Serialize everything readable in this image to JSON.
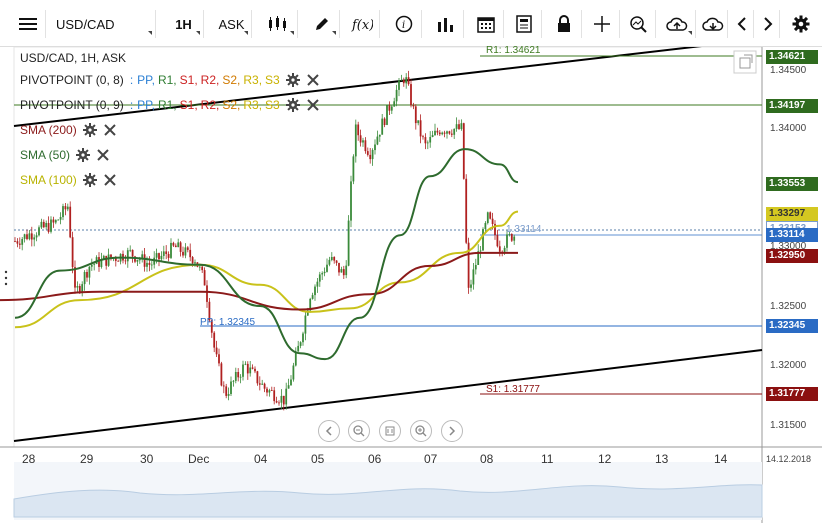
{
  "toolbar": {
    "symbol": "USD/CAD",
    "interval": "1H",
    "price_type": "ASK"
  },
  "chart": {
    "title": "USD/CAD, 1H, ASK",
    "indicators": [
      {
        "label": "PIVOTPOINT (0, 8)",
        "levels": [
          "PP,",
          "R1,",
          "S1,",
          "R2,",
          "S2,",
          "R3,",
          "S3"
        ]
      },
      {
        "label": "PIVOTPOINT (0, 9)",
        "levels": [
          "PP,",
          "R1,",
          "S1,",
          "R2,",
          "S2,",
          "R3,",
          "S3"
        ]
      },
      {
        "label": "SMA (200)"
      },
      {
        "label": "SMA (50)"
      },
      {
        "label": "SMA (100)"
      }
    ],
    "pivot_separator": ":",
    "level_colors": [
      "#2a7fd4",
      "#2f7d32",
      "#cc2222",
      "#cc2222",
      "#d07a00",
      "#c9b200",
      "#c9b200"
    ],
    "sma_colors": {
      "sma200": "#8b1a1a",
      "sma50": "#2e6b2e",
      "sma100": "#b8b300"
    },
    "line_labels": {
      "r1": "R1: 1.34621",
      "pp": "PP: 1.32345",
      "s1": "S1: 1.31777",
      "last": "1.33114"
    },
    "price_axis": [
      "1.34500",
      "1.34000",
      "1.33000",
      "1.32500",
      "1.32000",
      "1.31500"
    ],
    "price_tags": [
      {
        "value": "1.34621",
        "color": "#2f6b1f"
      },
      {
        "value": "1.34197",
        "color": "#2f6b1f"
      },
      {
        "value": "1.33553",
        "color": "#2f6b1f"
      },
      {
        "value": "1.33297",
        "color": "#d4c821",
        "text_color": "#333"
      },
      {
        "value": "1.33153",
        "color": "#ffffff",
        "text_color": "#7a9ccc"
      },
      {
        "value": "1.33114",
        "color": "#2a6bc4"
      },
      {
        "value": "1.32950",
        "color": "#8b1010"
      },
      {
        "value": "1.32345",
        "color": "#2a6bc4"
      },
      {
        "value": "1.31777",
        "color": "#8b1010"
      }
    ],
    "date_axis": [
      "28",
      "29",
      "30",
      "Dec",
      "04",
      "05",
      "06",
      "07",
      "08",
      "11",
      "12",
      "13",
      "14"
    ],
    "date_corner": "14.12.2018"
  },
  "chart_data": {
    "type": "line",
    "series": [
      {
        "name": "SMA (200)",
        "values": [
          [
            0,
            1.3255
          ],
          [
            100,
            1.3262
          ],
          [
            200,
            1.3262
          ],
          [
            300,
            1.3247
          ],
          [
            370,
            1.326
          ],
          [
            430,
            1.3284
          ],
          [
            480,
            1.3295
          ],
          [
            518,
            1.3295
          ]
        ]
      },
      {
        "name": "SMA (50)",
        "values": [
          [
            15,
            1.324
          ],
          [
            60,
            1.328
          ],
          [
            120,
            1.3291
          ],
          [
            200,
            1.3285
          ],
          [
            260,
            1.325
          ],
          [
            300,
            1.321
          ],
          [
            325,
            1.3205
          ],
          [
            360,
            1.324
          ],
          [
            400,
            1.331
          ],
          [
            430,
            1.336
          ],
          [
            465,
            1.3383
          ],
          [
            500,
            1.337
          ],
          [
            518,
            1.3355
          ]
        ]
      },
      {
        "name": "SMA (100)",
        "values": [
          [
            15,
            1.3232
          ],
          [
            80,
            1.3255
          ],
          [
            200,
            1.3285
          ],
          [
            260,
            1.3268
          ],
          [
            310,
            1.3245
          ],
          [
            350,
            1.3248
          ],
          [
            400,
            1.327
          ],
          [
            460,
            1.3295
          ],
          [
            500,
            1.3318
          ],
          [
            518,
            1.333
          ]
        ]
      }
    ],
    "ylim": [
      1.313,
      1.3475
    ]
  }
}
